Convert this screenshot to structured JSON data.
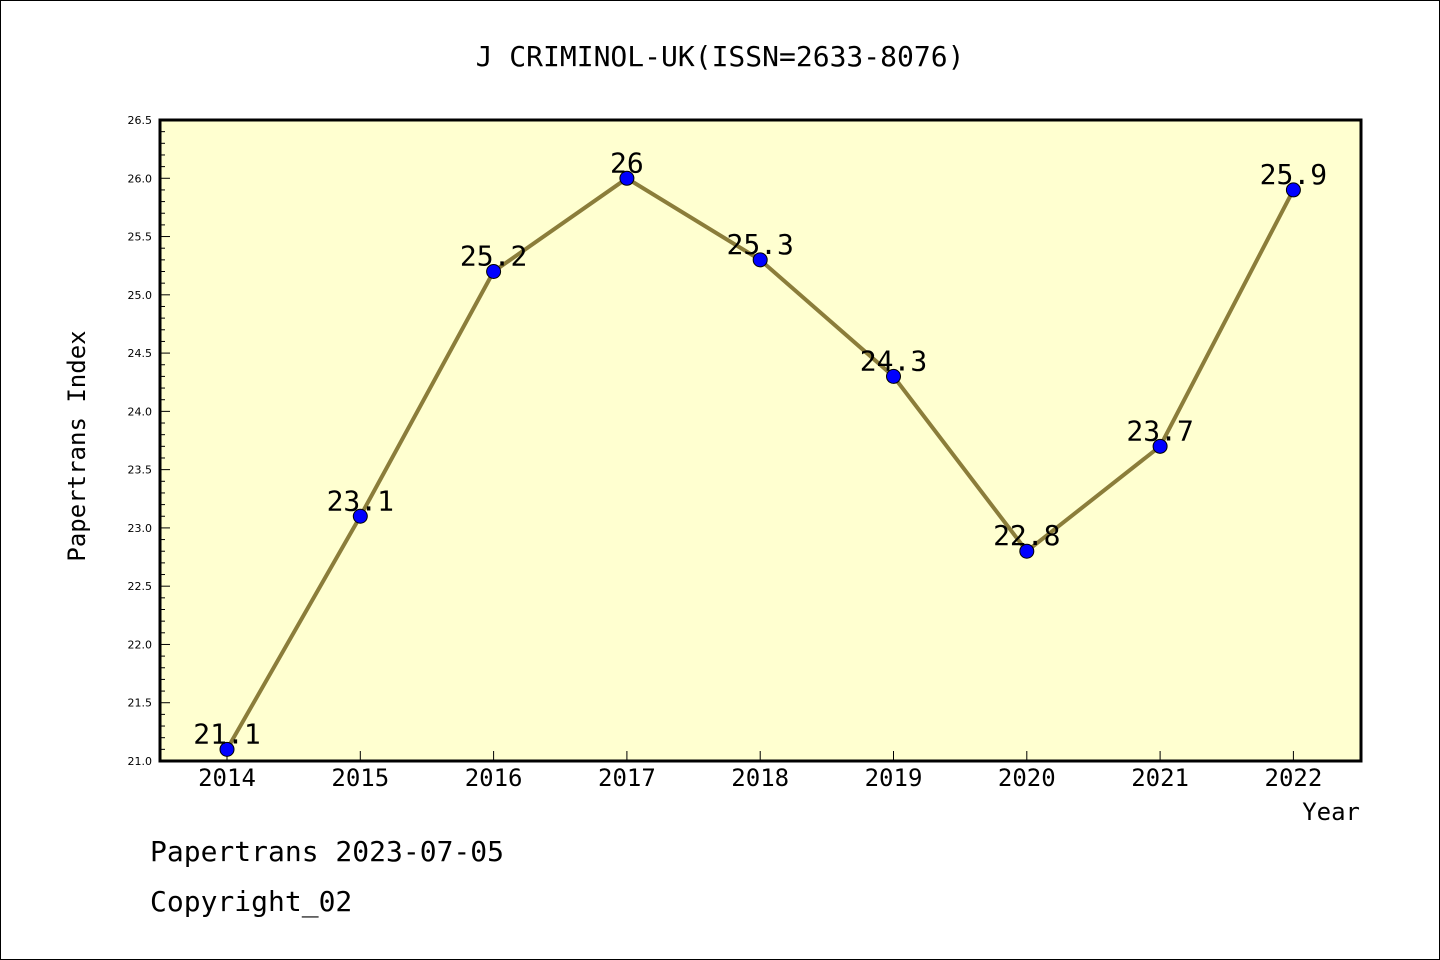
{
  "chart_data": {
    "type": "line",
    "title": "J CRIMINOL-UK(ISSN=2633-8076)",
    "xlabel": "Year",
    "ylabel": "Papertrans Index",
    "categories": [
      "2014",
      "2015",
      "2016",
      "2017",
      "2018",
      "2019",
      "2020",
      "2021",
      "2022"
    ],
    "series": [
      {
        "values": [
          21.1,
          23.1,
          25.2,
          26,
          25.3,
          24.3,
          22.8,
          23.7,
          25.9
        ]
      }
    ],
    "data_labels": [
      "21.1",
      "23.1",
      "25.2",
      "26",
      "25.3",
      "24.3",
      "22.8",
      "23.7",
      "25.9"
    ],
    "ylim": [
      21.0,
      26.5
    ],
    "yticks": [
      "21.0",
      "21.5",
      "22.0",
      "22.5",
      "23.0",
      "23.5",
      "24.0",
      "24.5",
      "25.0",
      "25.5",
      "26.0",
      "26.5"
    ],
    "grid": false,
    "colors": {
      "plot_background": "#ffffd0",
      "line": "#8b7d3a",
      "marker": "#0000ff"
    }
  },
  "footer": {
    "date_line": "Papertrans 2023-07-05",
    "copyright": "Copyright_02"
  }
}
